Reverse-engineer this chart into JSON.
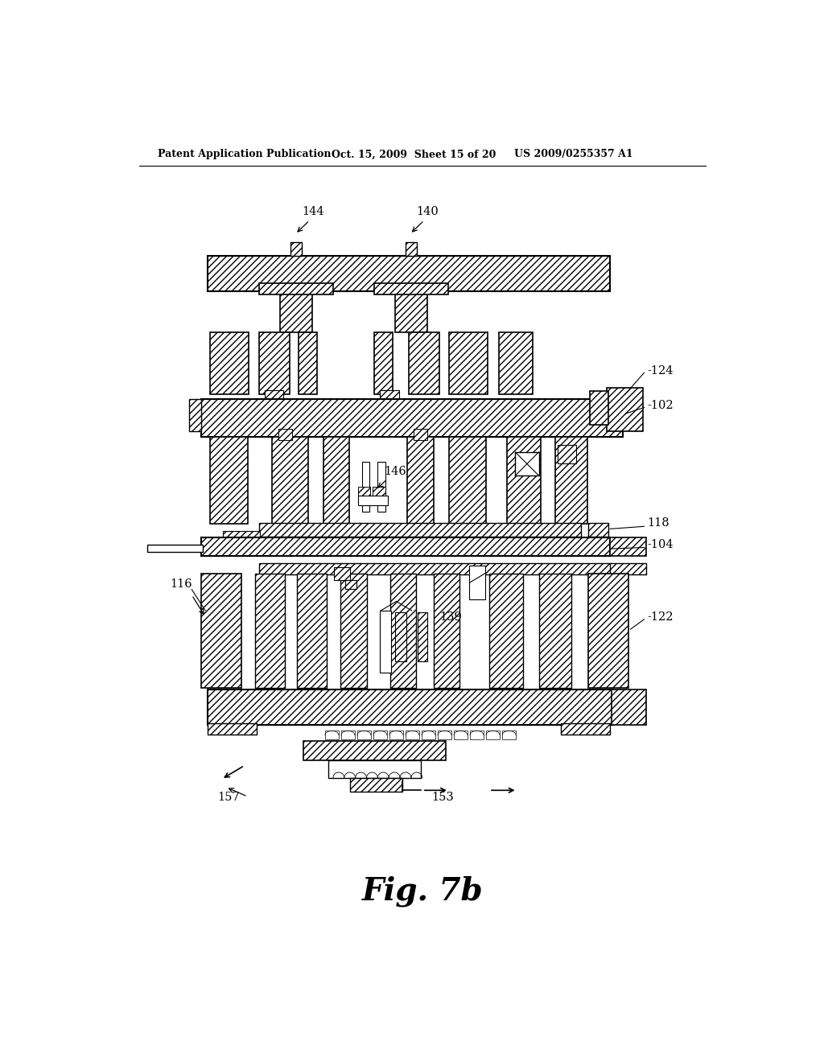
{
  "header_left": "Patent Application Publication",
  "header_mid": "Oct. 15, 2009  Sheet 15 of 20",
  "header_right": "US 2009/0255357 A1",
  "figure_label": "Fig. 7b",
  "bg_color": "#ffffff"
}
